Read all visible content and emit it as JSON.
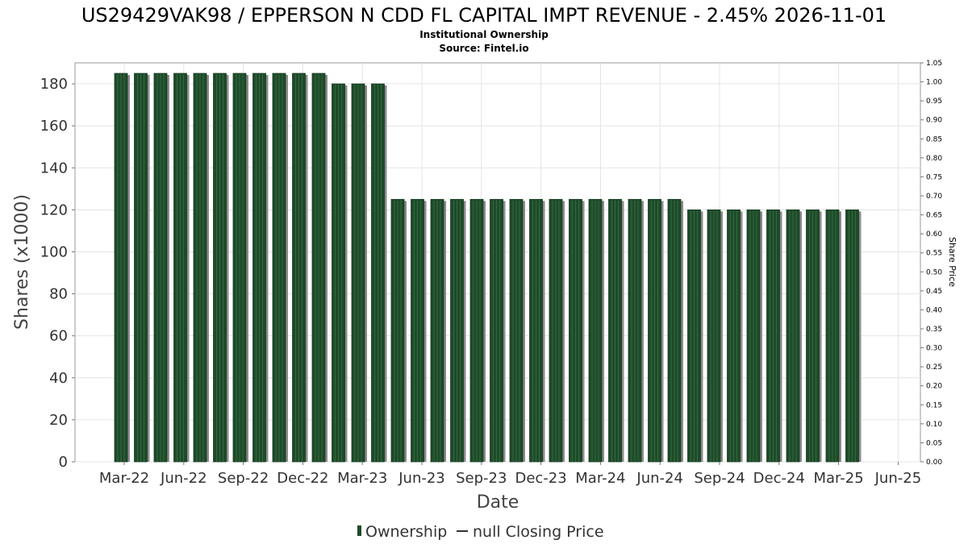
{
  "chart_data": {
    "type": "bar",
    "title": "US29429VAK98 / EPPERSON N CDD FL CAPITAL IMPT REVENUE - 2.45% 2026-11-01",
    "subtitle_lines": [
      "Institutional Ownership",
      "Source: Fintel.io"
    ],
    "xlabel": "Date",
    "ylabel": "Shares (x1000)",
    "y2label": "Share Price",
    "ylim": [
      0,
      190
    ],
    "y2lim": [
      0,
      1.05
    ],
    "yticks": [
      0,
      20,
      40,
      60,
      80,
      100,
      120,
      140,
      160,
      180
    ],
    "y2ticks": [
      "0.00",
      "0.05",
      "0.10",
      "0.15",
      "0.20",
      "0.25",
      "0.30",
      "0.35",
      "0.40",
      "0.45",
      "0.50",
      "0.55",
      "0.60",
      "0.65",
      "0.70",
      "0.75",
      "0.80",
      "0.85",
      "0.90",
      "0.95",
      "1.00",
      "1.05"
    ],
    "xticks": [
      "Mar-22",
      "Jun-22",
      "Sep-22",
      "Dec-22",
      "Mar-23",
      "Jun-23",
      "Sep-23",
      "Dec-23",
      "Mar-24",
      "Jun-24",
      "Sep-24",
      "Dec-24",
      "Mar-25",
      "Jun-25"
    ],
    "grid": true,
    "bar_color": "#1f4a2a",
    "series": [
      {
        "name": "Ownership",
        "values": [
          185,
          185,
          185,
          185,
          185,
          185,
          185,
          185,
          185,
          185,
          185,
          180,
          180,
          180,
          125,
          125,
          125,
          125,
          125,
          125,
          125,
          125,
          125,
          125,
          125,
          125,
          125,
          125,
          125,
          120,
          120,
          120,
          120,
          120,
          120,
          120,
          120,
          120
        ]
      }
    ],
    "legend": [
      {
        "label": "Ownership",
        "marker": "bar"
      },
      {
        "label": "null Closing Price",
        "marker": "line"
      }
    ],
    "legend_position": "bottom-center"
  }
}
